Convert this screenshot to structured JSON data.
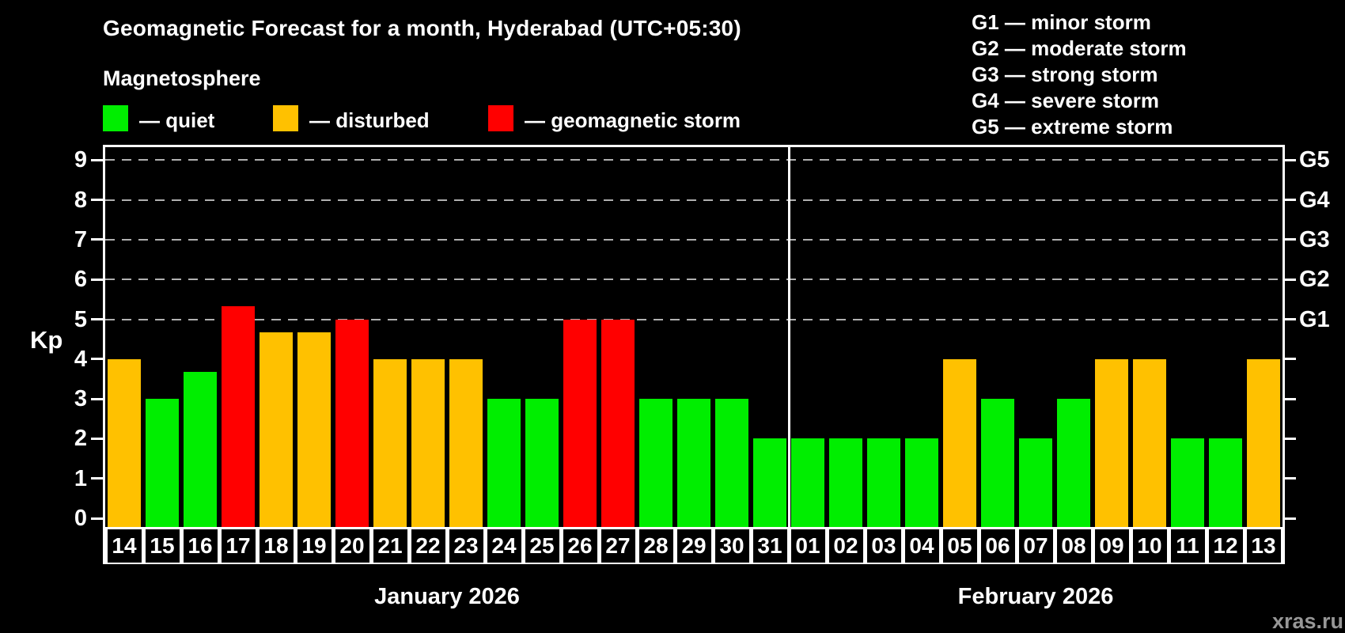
{
  "title": "Geomagnetic Forecast for a month, Hyderabad (UTC+05:30)",
  "subtitle": "Magnetosphere",
  "watermark": "xras.ru",
  "kp_axis_title": "Kp",
  "legend": {
    "quiet": {
      "label": "— quiet",
      "color": "#00EE00"
    },
    "disturbed": {
      "label": "— disturbed",
      "color": "#FFC100"
    },
    "storm": {
      "label": "— geomagnetic storm",
      "color": "#FF0000"
    }
  },
  "g_scale": [
    {
      "label": "G1 — minor storm"
    },
    {
      "label": "G2 — moderate storm"
    },
    {
      "label": "G3 — strong storm"
    },
    {
      "label": "G4 — severe storm"
    },
    {
      "label": "G5 — extreme storm"
    }
  ],
  "chart_data": {
    "type": "bar",
    "title": "Geomagnetic Forecast for a month, Hyderabad (UTC+05:30)",
    "xlabel": "",
    "ylabel": "Kp",
    "ylim": [
      0,
      9.4
    ],
    "yticks": [
      0,
      1,
      2,
      3,
      4,
      5,
      6,
      7,
      8,
      9
    ],
    "grid": "horizontal dashed gray lines at Kp 5,6,7,8,9 (storm levels G1–G5)",
    "legend_position": "top-left",
    "right_axis": [
      {
        "kp": 5,
        "label": "G1"
      },
      {
        "kp": 6,
        "label": "G2"
      },
      {
        "kp": 7,
        "label": "G3"
      },
      {
        "kp": 8,
        "label": "G4"
      },
      {
        "kp": 9,
        "label": "G5"
      }
    ],
    "months": [
      {
        "label": "January 2026",
        "days": 18
      },
      {
        "label": "February 2026",
        "days": 13
      }
    ],
    "series": [
      {
        "day": "14",
        "month": "January 2026",
        "kp": 4.0,
        "status": "disturbed"
      },
      {
        "day": "15",
        "month": "January 2026",
        "kp": 3.0,
        "status": "quiet"
      },
      {
        "day": "16",
        "month": "January 2026",
        "kp": 3.67,
        "status": "quiet"
      },
      {
        "day": "17",
        "month": "January 2026",
        "kp": 5.33,
        "status": "storm"
      },
      {
        "day": "18",
        "month": "January 2026",
        "kp": 4.67,
        "status": "disturbed"
      },
      {
        "day": "19",
        "month": "January 2026",
        "kp": 4.67,
        "status": "disturbed"
      },
      {
        "day": "20",
        "month": "January 2026",
        "kp": 5.0,
        "status": "storm"
      },
      {
        "day": "21",
        "month": "January 2026",
        "kp": 4.0,
        "status": "disturbed"
      },
      {
        "day": "22",
        "month": "January 2026",
        "kp": 4.0,
        "status": "disturbed"
      },
      {
        "day": "23",
        "month": "January 2026",
        "kp": 4.0,
        "status": "disturbed"
      },
      {
        "day": "24",
        "month": "January 2026",
        "kp": 3.0,
        "status": "quiet"
      },
      {
        "day": "25",
        "month": "January 2026",
        "kp": 3.0,
        "status": "quiet"
      },
      {
        "day": "26",
        "month": "January 2026",
        "kp": 5.0,
        "status": "storm"
      },
      {
        "day": "27",
        "month": "January 2026",
        "kp": 5.0,
        "status": "storm"
      },
      {
        "day": "28",
        "month": "January 2026",
        "kp": 3.0,
        "status": "quiet"
      },
      {
        "day": "29",
        "month": "January 2026",
        "kp": 3.0,
        "status": "quiet"
      },
      {
        "day": "30",
        "month": "January 2026",
        "kp": 3.0,
        "status": "quiet"
      },
      {
        "day": "31",
        "month": "January 2026",
        "kp": 2.0,
        "status": "quiet"
      },
      {
        "day": "01",
        "month": "February 2026",
        "kp": 2.0,
        "status": "quiet"
      },
      {
        "day": "02",
        "month": "February 2026",
        "kp": 2.0,
        "status": "quiet"
      },
      {
        "day": "03",
        "month": "February 2026",
        "kp": 2.0,
        "status": "quiet"
      },
      {
        "day": "04",
        "month": "February 2026",
        "kp": 2.0,
        "status": "quiet"
      },
      {
        "day": "05",
        "month": "February 2026",
        "kp": 4.0,
        "status": "disturbed"
      },
      {
        "day": "06",
        "month": "February 2026",
        "kp": 3.0,
        "status": "quiet"
      },
      {
        "day": "07",
        "month": "February 2026",
        "kp": 2.0,
        "status": "quiet"
      },
      {
        "day": "08",
        "month": "February 2026",
        "kp": 3.0,
        "status": "quiet"
      },
      {
        "day": "09",
        "month": "February 2026",
        "kp": 4.0,
        "status": "disturbed"
      },
      {
        "day": "10",
        "month": "February 2026",
        "kp": 4.0,
        "status": "disturbed"
      },
      {
        "day": "11",
        "month": "February 2026",
        "kp": 2.0,
        "status": "quiet"
      },
      {
        "day": "12",
        "month": "February 2026",
        "kp": 2.0,
        "status": "quiet"
      },
      {
        "day": "13",
        "month": "February 2026",
        "kp": 4.0,
        "status": "disturbed"
      }
    ]
  }
}
